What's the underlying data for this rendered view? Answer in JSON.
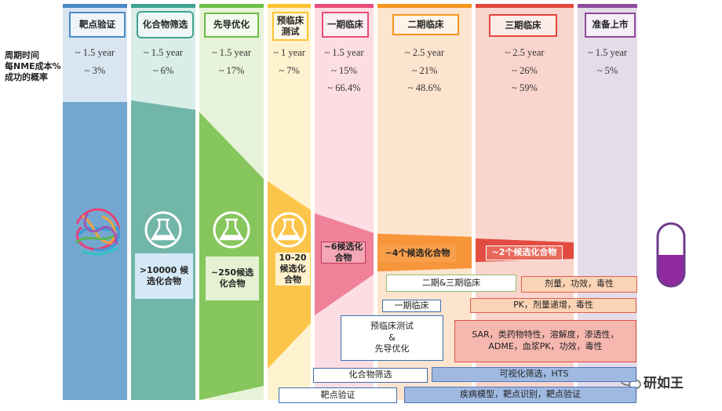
{
  "row_labels": [
    "周期时间",
    "每NME成本%",
    "成功的概率"
  ],
  "stages": [
    {
      "name": "靶点验证",
      "time": "~ 1.5 year",
      "cost": "~ 3%"
    },
    {
      "name": "化合物筛选",
      "time": "~ 1.5 year",
      "cost": "~ 6%",
      "candidates": ">10000 候选化合物"
    },
    {
      "name": "先导优化",
      "time": "~ 1.5 year",
      "cost": "~ 17%",
      "candidates": "~250候选化合物"
    },
    {
      "name": "预临床测试",
      "time": "~ 1 year",
      "cost": "~ 7%",
      "candidates": "10-20候选化合物"
    },
    {
      "name": "一期临床",
      "time": "~ 1.5 year",
      "cost": "~ 15%",
      "probability": "~ 66.4%",
      "candidates": "~6候选化合物"
    },
    {
      "name": "二期临床",
      "time": "~ 2.5 year",
      "cost": "~ 21%",
      "probability": "~ 48.6%",
      "candidates": "~4个候选化合物"
    },
    {
      "name": "三期临床",
      "time": "~ 2.5 year",
      "cost": "~ 26%",
      "probability": "~ 59%",
      "candidates": "~2个候选化合物"
    },
    {
      "name": "准备上市",
      "time": "~ 1.5 year",
      "cost": "~ 5%"
    }
  ],
  "activities": [
    {
      "stage": [
        "二期&三期临床"
      ],
      "description": "剂量，功效，毒性"
    },
    {
      "stage": [
        "一期临床"
      ],
      "description": "PK，剂量递增，毒性"
    },
    {
      "stage": [
        "预临床测试",
        "&",
        "先导优化"
      ],
      "description": "SAR，类药物特性，溶解度，渗透性，ADME，血浆PK，功效，毒性"
    },
    {
      "stage": [
        "化合物筛选"
      ],
      "description": "可视化筛选，HTS"
    },
    {
      "stage": [
        "靶点验证"
      ],
      "description": "疾病模型，靶点识别，靶点验证"
    }
  ],
  "watermark": "研如王"
}
